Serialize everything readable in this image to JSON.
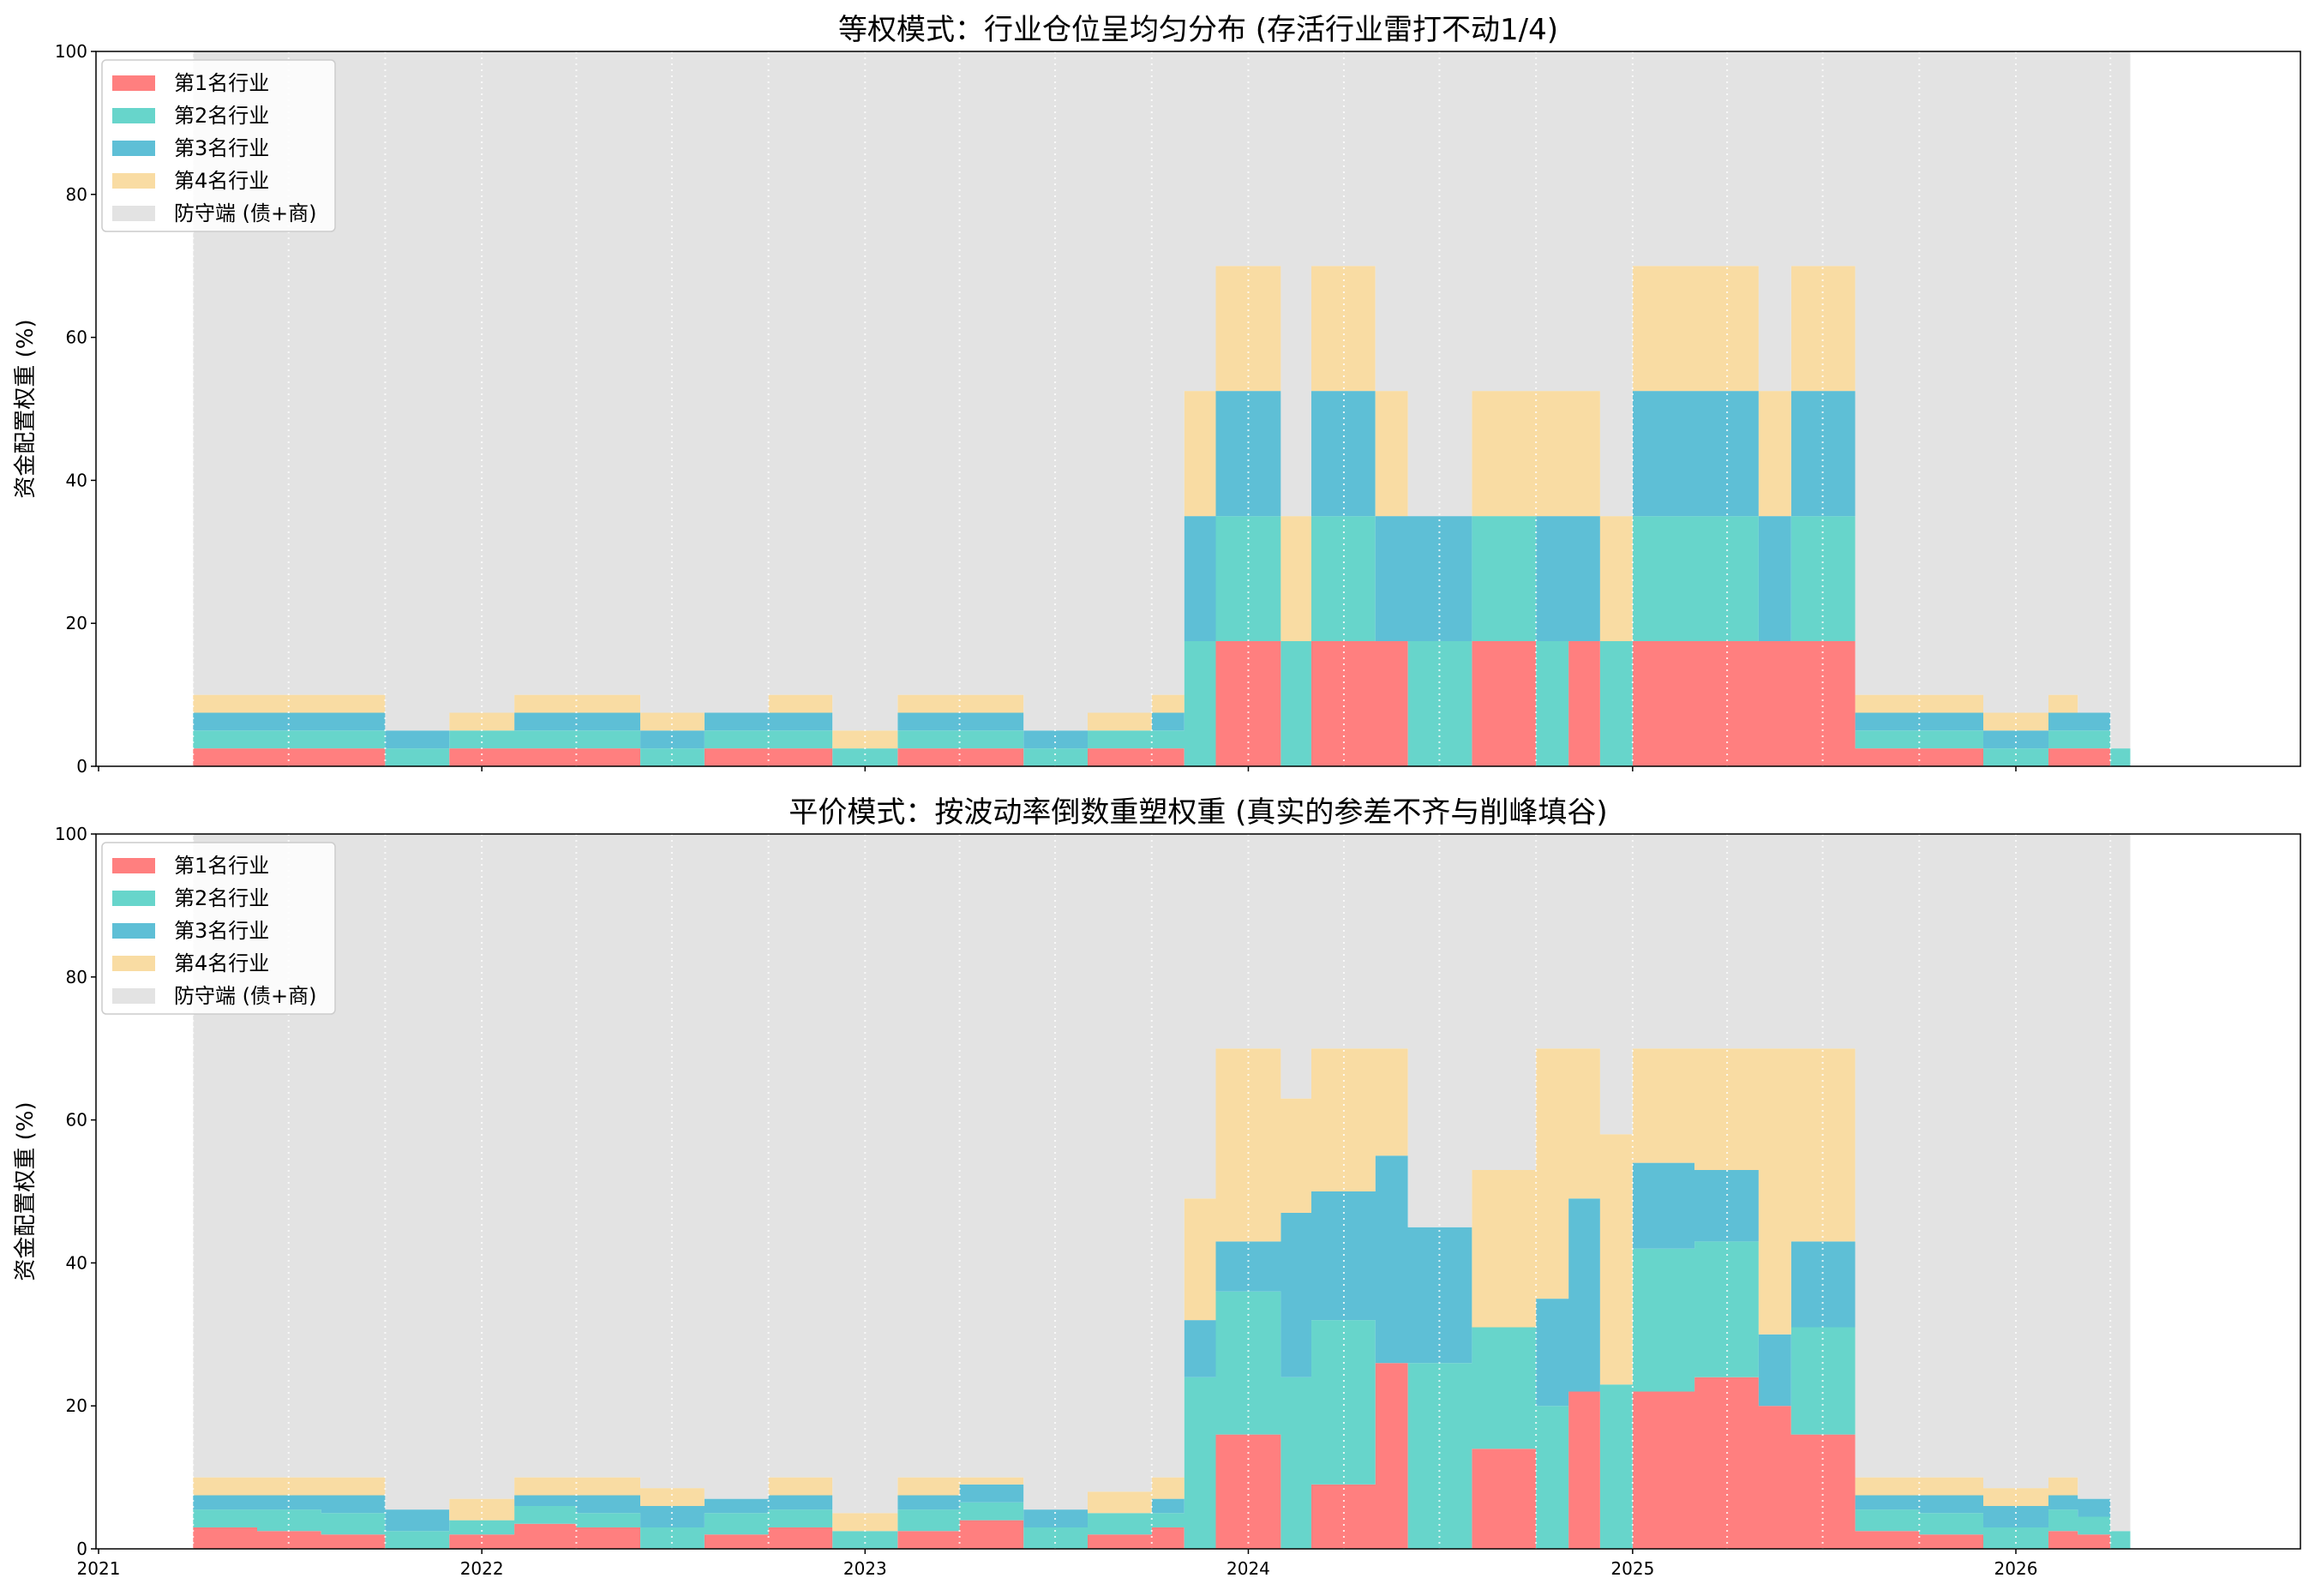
{
  "chart_data": [
    {
      "type": "area",
      "title": "等权模式：行业仓位呈均匀分布 (存活行业雷打不动1/4)",
      "ylabel": "资金配置权重 (%)",
      "xlabel": "",
      "ylim": [
        0,
        100
      ],
      "yticks": [
        "0",
        "20",
        "40",
        "60",
        "80",
        "100"
      ],
      "xticks": [
        "2021",
        "2022",
        "2023",
        "2024",
        "2025",
        "2026"
      ],
      "grid": "vertical dotted lines at month starts",
      "legend_position": "top-left",
      "x": [
        "2021-04",
        "2021-06",
        "2021-08",
        "2021-10",
        "2021-12",
        "2022-02",
        "2022-04",
        "2022-06",
        "2022-08",
        "2022-10",
        "2022-12",
        "2023-02",
        "2023-04",
        "2023-06",
        "2023-08",
        "2023-10",
        "2023-11",
        "2023-12",
        "2024-02",
        "2024-03",
        "2024-05",
        "2024-06",
        "2024-08",
        "2024-10",
        "2024-11",
        "2024-12",
        "2025-01",
        "2025-03",
        "2025-05",
        "2025-06",
        "2025-08",
        "2025-10",
        "2025-12",
        "2026-02",
        "2026-03",
        "2026-04"
      ],
      "series": [
        {
          "name": "第1名行业",
          "color": "#FF7F7F",
          "values": [
            2.5,
            2.5,
            2.5,
            0,
            2.5,
            2.5,
            2.5,
            0,
            2.5,
            2.5,
            0,
            2.5,
            2.5,
            0,
            2.5,
            2.5,
            0,
            17.5,
            0,
            17.5,
            17.5,
            0,
            17.5,
            0,
            17.5,
            0,
            17.5,
            17.5,
            17.5,
            17.5,
            2.5,
            2.5,
            0,
            2.5,
            2.5,
            0
          ]
        },
        {
          "name": "第2名行业",
          "color": "#67D5CB",
          "values": [
            2.5,
            2.5,
            2.5,
            2.5,
            2.5,
            2.5,
            2.5,
            2.5,
            2.5,
            2.5,
            2.5,
            2.5,
            2.5,
            2.5,
            2.5,
            2.5,
            17.5,
            17.5,
            17.5,
            17.5,
            0,
            17.5,
            17.5,
            17.5,
            0,
            17.5,
            17.5,
            17.5,
            0,
            17.5,
            2.5,
            2.5,
            2.5,
            2.5,
            2.5,
            2.5
          ]
        },
        {
          "name": "第3名行业",
          "color": "#5EBFD6",
          "values": [
            2.5,
            2.5,
            2.5,
            2.5,
            0,
            2.5,
            2.5,
            2.5,
            2.5,
            2.5,
            0,
            2.5,
            2.5,
            2.5,
            0,
            2.5,
            17.5,
            17.5,
            0,
            17.5,
            17.5,
            17.5,
            0,
            17.5,
            17.5,
            0,
            17.5,
            17.5,
            17.5,
            17.5,
            2.5,
            2.5,
            2.5,
            2.5,
            2.5,
            0
          ]
        },
        {
          "name": "第4名行业",
          "color": "#F9DCA3",
          "values": [
            2.5,
            2.5,
            2.5,
            0,
            2.5,
            2.5,
            2.5,
            2.5,
            0,
            2.5,
            2.5,
            2.5,
            2.5,
            0,
            2.5,
            2.5,
            17.5,
            17.5,
            17.5,
            17.5,
            17.5,
            0,
            17.5,
            17.5,
            17.5,
            17.5,
            17.5,
            17.5,
            17.5,
            17.5,
            2.5,
            2.5,
            2.5,
            2.5,
            0,
            0
          ]
        },
        {
          "name": "防守端 (债+商)",
          "color": "#E3E3E3",
          "values": [
            90,
            90,
            90,
            95,
            92.5,
            90,
            90,
            92.5,
            92.5,
            90,
            95,
            90,
            90,
            95,
            92.5,
            90,
            47.5,
            30,
            65,
            30,
            47.5,
            65,
            47.5,
            47.5,
            65,
            65,
            30,
            30,
            47.5,
            30,
            90,
            90,
            92.5,
            90,
            92.5,
            97.5
          ]
        }
      ]
    },
    {
      "type": "area",
      "title": "平价模式：按波动率倒数重塑权重 (真实的参差不齐与削峰填谷)",
      "ylabel": "资金配置权重 (%)",
      "xlabel": "",
      "ylim": [
        0,
        100
      ],
      "yticks": [
        "0",
        "20",
        "40",
        "60",
        "80",
        "100"
      ],
      "xticks": [
        "2021",
        "2022",
        "2023",
        "2024",
        "2025",
        "2026"
      ],
      "grid": "vertical dotted lines at month starts",
      "legend_position": "top-left",
      "x": [
        "2021-04",
        "2021-06",
        "2021-08",
        "2021-10",
        "2021-12",
        "2022-02",
        "2022-04",
        "2022-06",
        "2022-08",
        "2022-10",
        "2022-12",
        "2023-02",
        "2023-04",
        "2023-06",
        "2023-08",
        "2023-10",
        "2023-11",
        "2023-12",
        "2024-02",
        "2024-03",
        "2024-05",
        "2024-06",
        "2024-08",
        "2024-10",
        "2024-11",
        "2024-12",
        "2025-01",
        "2025-03",
        "2025-05",
        "2025-06",
        "2025-08",
        "2025-10",
        "2025-12",
        "2026-02",
        "2026-03",
        "2026-04"
      ],
      "series": [
        {
          "name": "第1名行业",
          "color": "#FF7F7F",
          "values": [
            3,
            2.5,
            2,
            0,
            2,
            3.5,
            3,
            0,
            2,
            3,
            0,
            2.5,
            4,
            0,
            2,
            3,
            0,
            16,
            0,
            9,
            26,
            0,
            14,
            0,
            22,
            0,
            22,
            24,
            20,
            16,
            2.5,
            2,
            0,
            2.5,
            2,
            0
          ]
        },
        {
          "name": "第2名行业",
          "color": "#67D5CB",
          "values": [
            2.5,
            3,
            3,
            2.5,
            2,
            2.5,
            2,
            3,
            3,
            2.5,
            2.5,
            3,
            2.5,
            3,
            3,
            2,
            24,
            20,
            24,
            23,
            0,
            26,
            17,
            20,
            0,
            23,
            20,
            19,
            0,
            15,
            3,
            3,
            3,
            3,
            2.5,
            2.5
          ]
        },
        {
          "name": "第3名行业",
          "color": "#5EBFD6",
          "values": [
            2,
            2,
            2.5,
            3,
            0,
            1.5,
            2.5,
            3,
            2,
            2,
            0,
            2,
            2.5,
            2.5,
            0,
            2,
            8,
            7,
            23,
            18,
            29,
            19,
            0,
            15,
            27,
            0,
            12,
            10,
            10,
            12,
            2,
            2.5,
            3,
            2,
            2.5,
            0
          ]
        },
        {
          "name": "第4名行业",
          "color": "#F9DCA3",
          "values": [
            2.5,
            2.5,
            2.5,
            0,
            3,
            2.5,
            2.5,
            2.5,
            0,
            2.5,
            2.5,
            2.5,
            1,
            0,
            3,
            3,
            17,
            27,
            16,
            20,
            15,
            0,
            22,
            35,
            21,
            35,
            16,
            17,
            40,
            27,
            2.5,
            2.5,
            2.5,
            2.5,
            0,
            0
          ]
        },
        {
          "name": "防守端 (债+商)",
          "color": "#E3E3E3",
          "values": [
            90,
            90,
            90,
            94.5,
            93,
            90,
            90,
            91.5,
            93,
            90,
            95,
            90,
            90,
            94.5,
            92,
            90,
            51,
            30,
            37,
            30,
            30,
            55,
            47,
            30,
            30,
            42,
            30,
            30,
            30,
            30,
            90,
            90,
            91.5,
            90,
            93,
            97.5
          ]
        }
      ]
    }
  ]
}
